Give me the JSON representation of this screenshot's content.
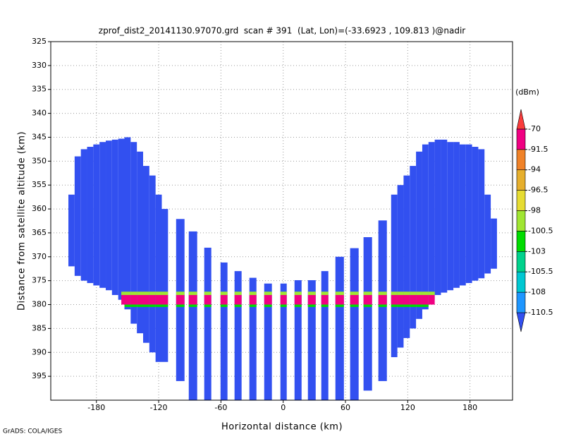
{
  "chart_data": {
    "type": "beam-profile",
    "title": "zprof_dist2_20141130.97070.grd  scan # 391  (Lat, Lon)=(-33.6923 , 109.813 )@nadir",
    "x_label": "Horizontal distance (km)",
    "y_label": "Distance from satellite altitude (km)",
    "colorbar_unit": "(dBm)",
    "footer": "GrADS: COLA/IGES",
    "xlim": [
      -224,
      221
    ],
    "ylim": [
      400,
      325
    ],
    "xticks": [
      -180,
      -120,
      -60,
      0,
      60,
      120,
      180
    ],
    "yticks": [
      325,
      330,
      335,
      340,
      345,
      350,
      355,
      360,
      365,
      370,
      375,
      380,
      385,
      390,
      395
    ],
    "grid": true,
    "levels": [
      -110.5,
      -108,
      -105.5,
      -103,
      -100.5,
      -98,
      -96.5,
      -94,
      -91.5,
      -70
    ],
    "colors": [
      "#3250f0",
      "#1e96ff",
      "#00c8d2",
      "#00d28c",
      "#00dc00",
      "#a0e632",
      "#e6dc32",
      "#e6af2d",
      "#f08228",
      "#f00082",
      "#fa3c3c"
    ],
    "beams": {
      "x0": [
        -207,
        -201,
        -195,
        -189,
        -183,
        -177,
        -171,
        -165,
        -159,
        -153,
        -147,
        -141,
        -135,
        -129,
        -123,
        -117,
        -103.2,
        -91,
        -76.1,
        -60.4,
        -46.9,
        -32.6,
        -18.3,
        -2.7,
        10.9,
        23.8,
        36.7,
        50.3,
        64.5,
        77.4,
        91.7,
        104,
        110,
        116,
        122,
        128,
        134,
        140,
        146,
        152,
        158,
        164,
        170,
        176,
        182,
        188,
        194,
        200
      ],
      "x1": [
        -201,
        -195,
        -189,
        -183,
        -177,
        -171,
        -165,
        -159,
        -153,
        -147,
        -141,
        -135,
        -129,
        -123,
        -117,
        -111,
        -95.1,
        -82.9,
        -69.3,
        -53.7,
        -40.1,
        -25.8,
        -10.9,
        3.4,
        17.7,
        31.3,
        43.5,
        58.5,
        72.7,
        85.6,
        99.9,
        110,
        116,
        122,
        128,
        134,
        140,
        146,
        152,
        158,
        164,
        170,
        176,
        182,
        188,
        194,
        200,
        206
      ],
      "top": [
        357,
        349,
        347.5,
        347,
        346.5,
        346,
        345.7,
        345.5,
        345.3,
        345,
        346,
        348,
        351,
        353,
        357,
        360,
        362.1,
        364.7,
        368.1,
        371.2,
        373,
        374.4,
        375.6,
        375.6,
        374.9,
        374.9,
        373,
        370,
        368.2,
        365.9,
        362.4,
        357,
        355,
        353,
        351,
        348,
        346.5,
        346,
        345.5,
        345.5,
        346,
        346,
        346.5,
        346.5,
        347,
        347.5,
        357,
        362
      ],
      "bottom": [
        372,
        374,
        375,
        375.5,
        376,
        376.5,
        377,
        378,
        379,
        381,
        384,
        386,
        388,
        390,
        392,
        392,
        396,
        400,
        400,
        400,
        400,
        400,
        400,
        400,
        400,
        400,
        400,
        400,
        400,
        398,
        396,
        391,
        389,
        387,
        385,
        383,
        381,
        379,
        378,
        377.5,
        377,
        376.5,
        376,
        375.5,
        375,
        374.5,
        373.5,
        372.5
      ],
      "value": [
        -115,
        -115,
        -115,
        -115,
        -115,
        -115,
        -115,
        -115,
        -115,
        -115,
        -115,
        -115,
        -115,
        -115,
        -115,
        -115,
        -115,
        -115,
        -115,
        -115,
        -115,
        -115,
        -115,
        -115,
        -115,
        -115,
        -115,
        -115,
        -115,
        -115,
        -115,
        -115,
        -115,
        -115,
        -115,
        -115,
        -115,
        -115,
        -115,
        -115,
        -115,
        -115,
        -115,
        -115,
        -115,
        -115,
        -115,
        -115
      ]
    },
    "surface": [
      {
        "x0": -156,
        "x1": 146,
        "top": 377.3,
        "bottom": 378,
        "value": -99
      },
      {
        "x0": -156,
        "x1": 146,
        "top": 378,
        "bottom": 380,
        "value": -80
      },
      {
        "x0": -156,
        "x1": 146,
        "top": 380,
        "bottom": 380.5,
        "value": -101
      }
    ]
  }
}
